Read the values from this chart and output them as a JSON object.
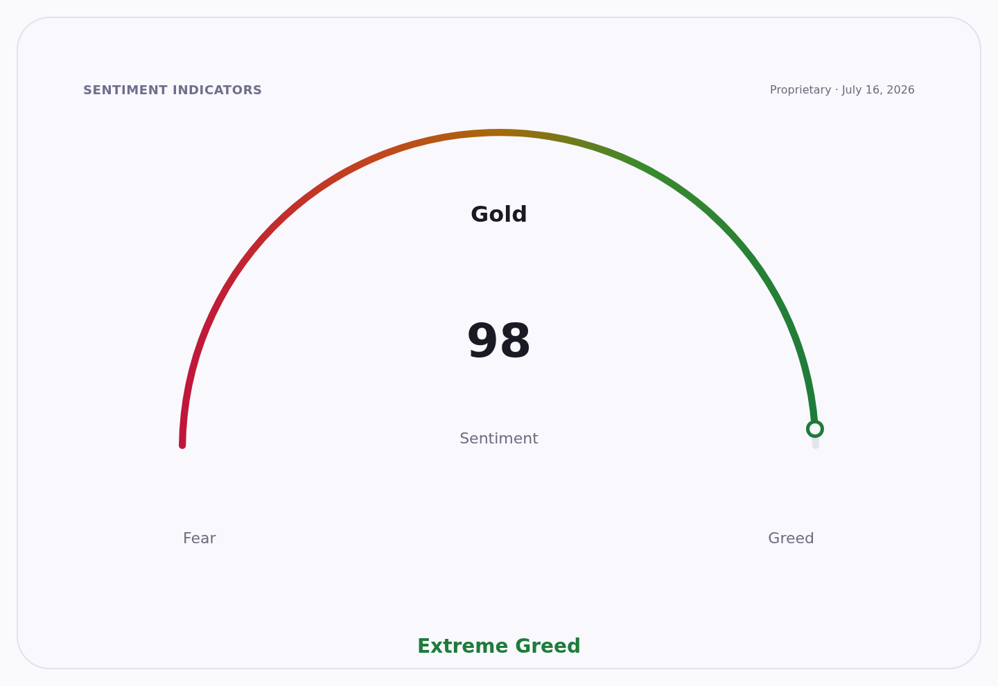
{
  "chart_data": {
    "type": "donut",
    "title": "SENTIMENT INDICATORS",
    "subtitle": "Gold",
    "categories": [
      null,
      null
    ],
    "values": [
      98,
      2
    ],
    "colors": [
      "#1e7b3a",
      "#e4e4eb"
    ],
    "value_labels": [
      "98",
      null
    ],
    "annotations": [
      "Proprietary · July 16, 2026",
      "Sentiment",
      "Fear",
      "Greed",
      "Extreme Greed"
    ]
  }
}
